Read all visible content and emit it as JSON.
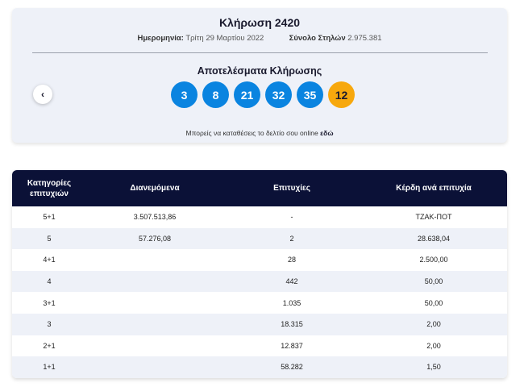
{
  "draw": {
    "title": "Κλήρωση 2420",
    "date_label": "Ημερομηνία:",
    "date_value": "Τρίτη 29 Μαρτίου 2022",
    "columns_label": "Σύνολο Στηλών",
    "columns_value": "2.975.381",
    "results_title": "Αποτελέσματα Κλήρωσης",
    "numbers": [
      "3",
      "8",
      "21",
      "32",
      "35"
    ],
    "joker": "12",
    "prev_icon": "‹",
    "online_text": "Μπορείς να καταθέσεις το δελτίο σου online",
    "online_link": "εδώ"
  },
  "colors": {
    "ball": "#0a84e0",
    "joker": "#f7a80d",
    "table_header": "#0b1137",
    "card_bg": "#eef1f8"
  },
  "table": {
    "headers": {
      "category_line1": "Κατηγορίες",
      "category_line2": "επιτυχιών",
      "distributed": "Διανεμόμενα",
      "winners": "Επιτυχίες",
      "prize": "Κέρδη ανά επιτυχία"
    },
    "rows": [
      {
        "category": "5+1",
        "distributed": "3.507.513,86",
        "winners": "-",
        "prize": "ΤΖΑΚ-ΠΟΤ"
      },
      {
        "category": "5",
        "distributed": "57.276,08",
        "winners": "2",
        "prize": "28.638,04"
      },
      {
        "category": "4+1",
        "distributed": "",
        "winners": "28",
        "prize": "2.500,00"
      },
      {
        "category": "4",
        "distributed": "",
        "winners": "442",
        "prize": "50,00"
      },
      {
        "category": "3+1",
        "distributed": "",
        "winners": "1.035",
        "prize": "50,00"
      },
      {
        "category": "3",
        "distributed": "",
        "winners": "18.315",
        "prize": "2,00"
      },
      {
        "category": "2+1",
        "distributed": "",
        "winners": "12.837",
        "prize": "2,00"
      },
      {
        "category": "1+1",
        "distributed": "",
        "winners": "58.282",
        "prize": "1,50"
      }
    ]
  }
}
